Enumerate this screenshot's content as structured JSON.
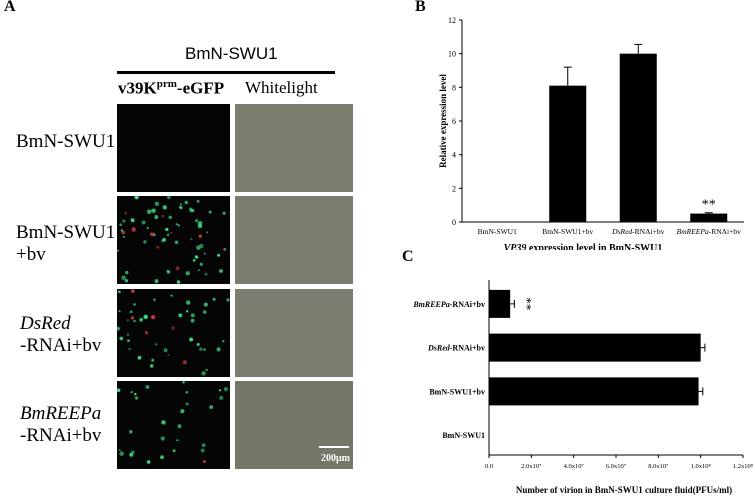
{
  "panelA": {
    "letter": "A",
    "header": "BmN-SWU1",
    "col1_main": "v39K",
    "col1_sup": "prm",
    "col1_suffix": "-eGFP",
    "col2": "Whitelight",
    "rows": [
      {
        "line1": "BmN-SWU1",
        "line2": "",
        "italic": false,
        "dots": 0
      },
      {
        "line1": "BmN-SWU1",
        "line2": "+bv",
        "italic": false,
        "dots": 70
      },
      {
        "line1": "DsRed",
        "line2": "-RNAi+bv",
        "italic": true,
        "dots": 45
      },
      {
        "line1": "BmREEPa",
        "line2": "-RNAi+bv",
        "italic": true,
        "dots": 28
      }
    ],
    "scale_bar": "200μm",
    "colors": {
      "gfp": "#3ddc84",
      "brightfield": "#7d7d6f",
      "dark": "#050505"
    }
  },
  "panelB": {
    "letter": "B",
    "xlabel_italic": "VP39",
    "xlabel_rest": " expression level in BmN-SWU1",
    "significance": "**",
    "chart_data": {
      "type": "bar",
      "categories": [
        "BmN-SWU1",
        "BmN-SWU1+bv",
        "DsRed-RNAi+bv",
        "BmREEPa-RNAi+bv"
      ],
      "category_labels": [
        {
          "italic": "",
          "rest": "BmN-SWU1"
        },
        {
          "italic": "",
          "rest": "BmN-SWU1+bv"
        },
        {
          "italic": "DsRed",
          "rest": "-RNAi+bv"
        },
        {
          "italic": "BmREEPa",
          "rest": "-RNAi+bv"
        }
      ],
      "values": [
        0,
        8.1,
        10.0,
        0.5
      ],
      "errors": [
        0,
        1.1,
        0.55,
        0.05
      ],
      "ylabel": "Relative expression level",
      "ylim": [
        0,
        12
      ],
      "yticks": [
        "0",
        "2",
        "4",
        "6",
        "8",
        "10",
        "12"
      ],
      "grid": false
    }
  },
  "panelC": {
    "letter": "C",
    "significance": "**",
    "chart_data": {
      "type": "bar",
      "orientation": "horizontal",
      "categories": [
        "BmREEPa-RNAi+bv",
        "DsRed-RNAi+bv",
        "BmN-SWU1+bv",
        "BmN-SWU1"
      ],
      "category_labels": [
        {
          "italic": "BmREEPa",
          "rest": "-RNAi+bv"
        },
        {
          "italic": "DsRed",
          "rest": "-RNAi+bv"
        },
        {
          "italic": "",
          "rest": "BmN-SWU1+bv"
        },
        {
          "italic": "",
          "rest": "BmN-SWU1"
        }
      ],
      "values": [
        10000000.0,
        100000000.0,
        99000000.0,
        0
      ],
      "errors": [
        2000000.0,
        2000000.0,
        2000000.0,
        0
      ],
      "xlabel": "Number of virion in BmN-SWU1 culture fluid(PFUs/ml)",
      "xlim": [
        0,
        120000000.0
      ],
      "xticks": [
        "0.0",
        "2.0x10⁷",
        "4.0x10⁷",
        "6.0x10⁷",
        "8.0x10⁷",
        "1.0x10⁸",
        "1.2x10⁸"
      ],
      "grid": false
    }
  }
}
